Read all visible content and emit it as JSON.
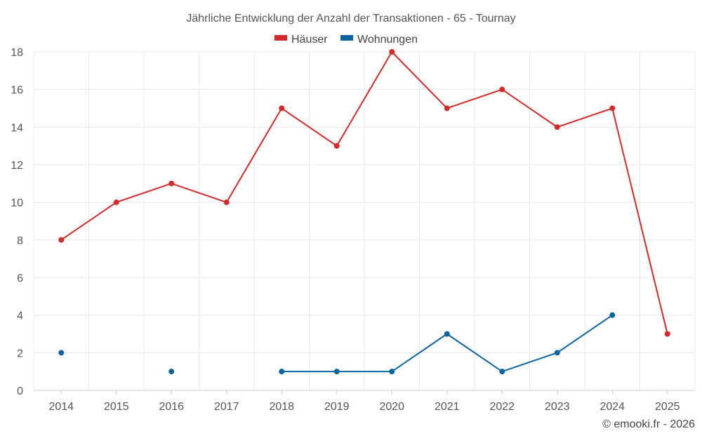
{
  "chart_data": {
    "type": "line",
    "title": "Jährliche Entwicklung der Anzahl der Transaktionen - 65 - Tournay",
    "categories": [
      "2014",
      "2015",
      "2016",
      "2017",
      "2018",
      "2019",
      "2020",
      "2021",
      "2022",
      "2023",
      "2024",
      "2025"
    ],
    "ylim": [
      0,
      18
    ],
    "yticks": [
      0,
      2,
      4,
      6,
      8,
      10,
      12,
      14,
      16,
      18
    ],
    "legend_position": "top-center",
    "grid": true,
    "series": [
      {
        "name": "Häuser",
        "color": "#d42a2a",
        "values": [
          8,
          10,
          11,
          10,
          15,
          13,
          18,
          15,
          16,
          14,
          15,
          3
        ]
      },
      {
        "name": "Wohnungen",
        "color": "#0a64a0",
        "values": [
          2,
          null,
          1,
          null,
          1,
          1,
          1,
          3,
          1,
          2,
          4,
          null
        ]
      }
    ]
  },
  "credit": "© emooki.fr - 2026"
}
